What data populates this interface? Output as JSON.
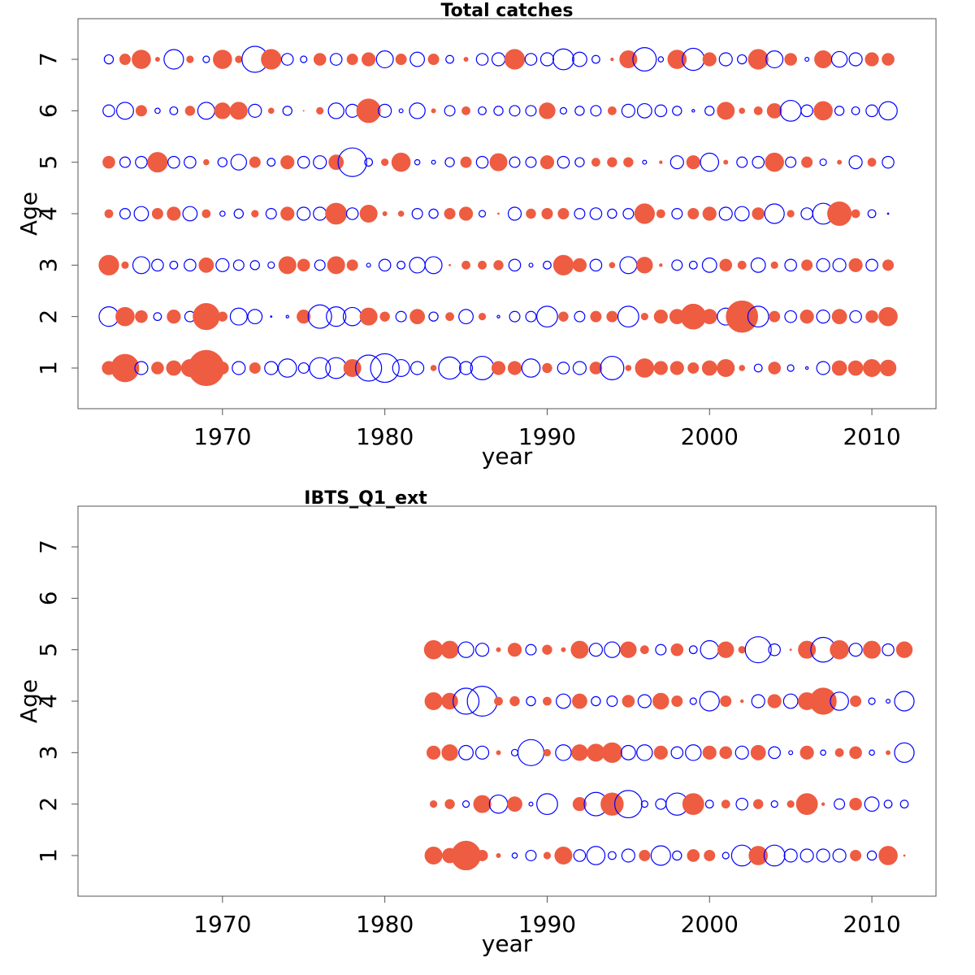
{
  "chart_data": [
    {
      "type": "bubble",
      "title": "Total catches",
      "xlabel": "year",
      "ylabel": "Age",
      "positive_color": "#EE5C42",
      "negative_color": "#0000FF",
      "xlim": [
        1961.1,
        2013.95
      ],
      "xticks": [
        1970,
        1980,
        1990,
        2000,
        2010
      ],
      "ylim": [
        0.21,
        7.79
      ],
      "yticks": [
        1,
        2,
        3,
        4,
        5,
        6,
        7
      ],
      "x": [
        1963,
        1964,
        1965,
        1966,
        1967,
        1968,
        1969,
        1970,
        1971,
        1972,
        1973,
        1974,
        1975,
        1976,
        1977,
        1978,
        1979,
        1980,
        1981,
        1982,
        1983,
        1984,
        1985,
        1986,
        1987,
        1988,
        1989,
        1990,
        1991,
        1992,
        1993,
        1994,
        1995,
        1996,
        1997,
        1998,
        1999,
        2000,
        2001,
        2002,
        2003,
        2004,
        2005,
        2006,
        2007,
        2008,
        2009,
        2010,
        2011
      ],
      "ages": [
        1,
        2,
        3,
        4,
        5,
        6,
        7
      ],
      "residuals": [
        [
          1.0,
          2.1,
          -1.0,
          0.9,
          1.1,
          1.3,
          2.7,
          0.9,
          -1.0,
          0.8,
          -1.0,
          -1.4,
          -0.8,
          -1.6,
          -1.6,
          1.3,
          -2.0,
          -2.2,
          -1.3,
          -1.0,
          0.4,
          -1.7,
          -1.0,
          -1.8,
          1.0,
          1.0,
          -1.4,
          0.7,
          -0.9,
          -1.0,
          0.9,
          -1.8,
          0.4,
          1.4,
          1.0,
          1.0,
          0.8,
          1.1,
          1.3,
          0.4,
          -0.6,
          0.9,
          -0.5,
          -0.2,
          -1.0,
          1.1,
          1.1,
          1.3,
          1.2
        ],
        [
          -1.5,
          1.4,
          0.9,
          -0.6,
          1.0,
          -0.8,
          2.0,
          0.7,
          -1.3,
          -1.1,
          -0.1,
          -0.2,
          1.0,
          -1.8,
          -1.5,
          -1.4,
          1.3,
          0.7,
          -0.8,
          1.1,
          -0.7,
          0.6,
          -1.1,
          0.5,
          -0.2,
          -0.8,
          -0.8,
          -1.6,
          0.7,
          -0.8,
          0.8,
          0.8,
          -1.6,
          0.5,
          1.0,
          1.1,
          1.9,
          1.1,
          -1.3,
          2.4,
          -1.6,
          0.8,
          -0.9,
          1.0,
          -1.0,
          1.1,
          -0.9,
          0.9,
          1.4
        ],
        [
          1.5,
          0.5,
          -1.3,
          -0.9,
          -0.6,
          -0.9,
          1.1,
          -1.0,
          -0.8,
          -0.7,
          -0.5,
          1.3,
          0.9,
          -0.8,
          1.3,
          0.8,
          -0.3,
          -0.9,
          -0.6,
          -1.2,
          -1.3,
          0.1,
          0.6,
          0.6,
          0.7,
          -0.9,
          -0.3,
          -0.6,
          1.5,
          1.0,
          -0.9,
          0.4,
          -1.3,
          1.2,
          0.2,
          -0.8,
          -0.6,
          -1.1,
          0.9,
          0.6,
          -1.1,
          0.5,
          -0.9,
          0.8,
          -1.0,
          -1.0,
          1.0,
          -0.9,
          0.8
        ],
        [
          0.6,
          -0.8,
          -1.1,
          0.8,
          1.0,
          -1.1,
          0.6,
          -0.4,
          -0.7,
          0.5,
          -0.8,
          1.0,
          -1.0,
          -1.0,
          1.6,
          -0.9,
          1.3,
          0.3,
          0.4,
          -0.8,
          -0.7,
          0.8,
          1.0,
          -0.5,
          0.1,
          -1.0,
          0.7,
          0.8,
          0.8,
          -0.8,
          -0.9,
          -0.7,
          -0.8,
          1.5,
          0.6,
          -0.8,
          0.8,
          1.0,
          -1.0,
          -1.1,
          0.9,
          -1.5,
          0.5,
          -0.9,
          -1.6,
          1.8,
          0.6,
          -0.6,
          -0.1
        ],
        [
          0.9,
          -0.8,
          -0.9,
          1.5,
          -0.9,
          -0.9,
          0.4,
          -0.7,
          -1.2,
          0.8,
          -0.6,
          1.0,
          -0.9,
          -1.0,
          1.1,
          -2.2,
          -0.6,
          0.5,
          1.4,
          -0.4,
          -0.3,
          -0.7,
          0.8,
          -0.9,
          1.3,
          -0.8,
          -0.8,
          1.0,
          -0.9,
          -0.7,
          0.6,
          0.7,
          0.7,
          -0.3,
          0.2,
          -1.0,
          1.0,
          -1.4,
          0.3,
          -0.8,
          -0.9,
          1.4,
          -0.8,
          0.8,
          -0.5,
          0.3,
          -1.0,
          0.6,
          -0.9
        ],
        [
          -0.9,
          -1.3,
          0.8,
          -0.4,
          -0.6,
          0.7,
          -1.3,
          1.2,
          1.3,
          -1.0,
          0.4,
          -0.7,
          0.05,
          0.5,
          -1.2,
          -1.0,
          1.8,
          -1.0,
          -0.3,
          -1.2,
          0.3,
          -0.8,
          0.6,
          -0.6,
          -0.7,
          -0.8,
          -0.8,
          1.2,
          -0.5,
          -0.7,
          -0.8,
          0.6,
          -1.0,
          -1.1,
          -0.9,
          -0.7,
          -0.2,
          -0.7,
          1.3,
          0.4,
          0.6,
          1.1,
          -1.6,
          -0.9,
          1.4,
          -0.7,
          -0.6,
          -0.9,
          -1.4
        ],
        [
          -0.7,
          0.8,
          1.4,
          0.3,
          -1.5,
          0.5,
          -0.5,
          1.4,
          0.5,
          -2.0,
          1.5,
          -0.9,
          -0.5,
          0.9,
          -0.9,
          0.8,
          1.0,
          -1.3,
          0.8,
          -1.1,
          0.8,
          -0.6,
          0.3,
          -0.9,
          -1.0,
          1.5,
          -0.9,
          -1.0,
          -1.6,
          -1.1,
          -0.6,
          0.2,
          1.3,
          -1.8,
          -0.4,
          1.4,
          -1.7,
          1.0,
          -1.0,
          -0.7,
          1.5,
          -1.3,
          0.9,
          -0.3,
          1.3,
          -1.2,
          -1.0,
          1.0,
          0.9
        ]
      ]
    },
    {
      "type": "bubble",
      "title": "IBTS_Q1_ext",
      "xlabel": "year",
      "ylabel": "Age",
      "positive_color": "#EE5C42",
      "negative_color": "#0000FF",
      "xlim": [
        1961.1,
        2013.95
      ],
      "xticks": [
        1970,
        1980,
        1990,
        2000,
        2010
      ],
      "ylim": [
        0.21,
        7.79
      ],
      "yticks": [
        1,
        2,
        3,
        4,
        5,
        6,
        7
      ],
      "x": [
        1983,
        1984,
        1985,
        1986,
        1987,
        1988,
        1989,
        1990,
        1991,
        1992,
        1993,
        1994,
        1995,
        1996,
        1997,
        1998,
        1999,
        2000,
        2001,
        2002,
        2003,
        2004,
        2005,
        2006,
        2007,
        2008,
        2009,
        2010,
        2011,
        2012
      ],
      "ages": [
        1,
        2,
        3,
        4,
        5
      ],
      "residuals": [
        [
          1.3,
          1.1,
          2.2,
          0.8,
          0.3,
          -0.4,
          -0.8,
          0.5,
          1.3,
          -0.9,
          -1.4,
          -0.6,
          -1.0,
          0.8,
          -1.5,
          -0.7,
          0.9,
          0.8,
          -0.5,
          -1.6,
          1.4,
          -1.6,
          -1.0,
          -1.0,
          -1.0,
          -1.0,
          0.8,
          -0.7,
          1.4,
          0.1
        ],
        [
          0.5,
          0.7,
          -0.5,
          1.3,
          -1.4,
          1.1,
          -0.3,
          -1.6,
          0.0,
          1.0,
          -1.8,
          1.7,
          -2.1,
          -0.5,
          -0.8,
          -1.7,
          1.6,
          -0.6,
          0.6,
          -0.9,
          0.7,
          -0.5,
          0.5,
          1.6,
          0.2,
          -0.8,
          0.9,
          -1.1,
          -0.6,
          -0.6
        ],
        [
          1.0,
          1.2,
          -1.1,
          -1.0,
          0.3,
          -0.5,
          -2.0,
          0.5,
          -1.2,
          1.2,
          1.3,
          1.5,
          -1.1,
          -1.2,
          1.0,
          -0.9,
          -1.2,
          1.0,
          0.9,
          -1.0,
          1.1,
          -0.9,
          -0.3,
          1.0,
          -0.4,
          0.6,
          0.9,
          -0.4,
          0.3,
          -1.5
        ],
        [
          1.3,
          1.2,
          -2.0,
          -2.3,
          0.6,
          0.7,
          -0.7,
          0.6,
          -1.1,
          1.1,
          -0.7,
          -0.8,
          0.9,
          -1.0,
          1.2,
          0.8,
          -0.5,
          -1.5,
          0.8,
          0.2,
          -1.0,
          1.0,
          -1.1,
          1.3,
          2.0,
          -1.4,
          0.8,
          -0.5,
          -0.3,
          -1.5
        ],
        [
          1.4,
          1.3,
          -1.2,
          -1.0,
          0.3,
          1.0,
          -0.8,
          0.7,
          0.3,
          1.3,
          -1.0,
          -1.2,
          1.2,
          0.6,
          -0.8,
          0.9,
          -0.6,
          -1.4,
          1.2,
          0.5,
          -2.0,
          -0.9,
          0.1,
          1.3,
          -1.9,
          1.4,
          -1.0,
          1.3,
          -0.9,
          1.2
        ]
      ]
    }
  ]
}
